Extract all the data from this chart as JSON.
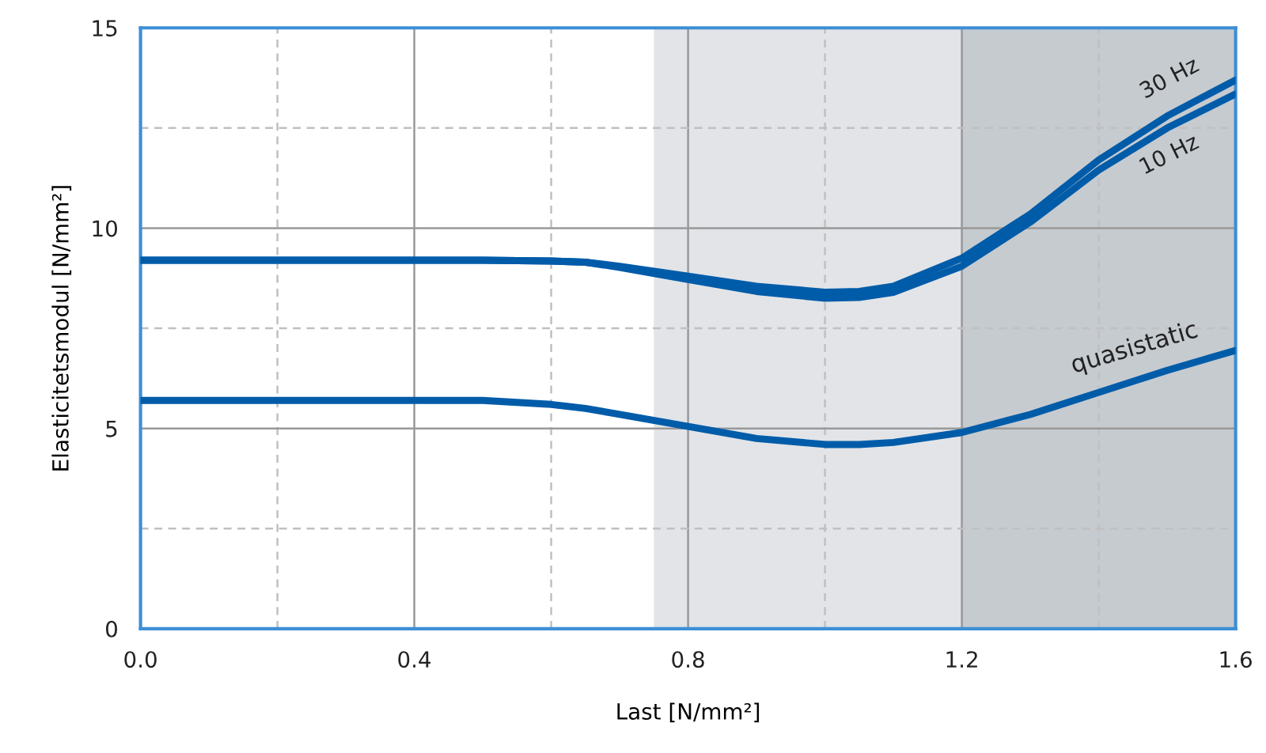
{
  "chart_data": {
    "type": "line",
    "xlabel": "Last [N/mm²]",
    "ylabel": "Elasticitetsmodul [N/mm²]",
    "x": [
      0,
      0.2,
      0.4,
      0.5,
      0.6,
      0.65,
      0.7,
      0.8,
      0.9,
      1.0,
      1.05,
      1.1,
      1.2,
      1.3,
      1.4,
      1.5,
      1.6
    ],
    "series": [
      {
        "name": "30 Hz",
        "color": "#005ca9",
        "values": [
          9.2,
          9.2,
          9.2,
          9.2,
          9.18,
          9.15,
          9.05,
          8.8,
          8.55,
          8.4,
          8.42,
          8.55,
          9.25,
          10.35,
          11.7,
          12.8,
          13.7
        ]
      },
      {
        "name": "10 Hz",
        "color": "#005ca9",
        "values": [
          9.2,
          9.2,
          9.2,
          9.2,
          9.18,
          9.15,
          9.02,
          8.72,
          8.42,
          8.25,
          8.27,
          8.4,
          9.05,
          10.15,
          11.45,
          12.5,
          13.35
        ]
      },
      {
        "name": "quasistatic",
        "color": "#005ca9",
        "values": [
          5.7,
          5.7,
          5.7,
          5.7,
          5.6,
          5.5,
          5.35,
          5.05,
          4.75,
          4.6,
          4.6,
          4.65,
          4.9,
          5.35,
          5.9,
          6.45,
          6.95
        ]
      }
    ],
    "xlim": [
      0,
      1.6
    ],
    "ylim": [
      0,
      15
    ],
    "xticks": [
      {
        "value": 0,
        "label": "0.0"
      },
      {
        "value": 0.2,
        "label": null
      },
      0.4,
      {
        "value": 0.6,
        "label": null
      },
      0.8,
      {
        "value": 1.0,
        "label": null
      },
      1.2,
      {
        "value": 1.4,
        "label": null
      },
      1.6
    ],
    "yticks": [
      0,
      {
        "value": 2.5,
        "label": null
      },
      5,
      {
        "value": 7.5,
        "label": null
      },
      10,
      {
        "value": 12.5,
        "label": null
      },
      15
    ],
    "bands": [
      {
        "axis": "x",
        "from": 0.75,
        "to": 1.2,
        "color": "#e2e4e8"
      },
      {
        "axis": "x",
        "from": 1.2,
        "to": 1.6,
        "color": "#c6cbd0"
      }
    ],
    "grid": true,
    "legend": false,
    "line_style": "solid",
    "marker": "none"
  }
}
